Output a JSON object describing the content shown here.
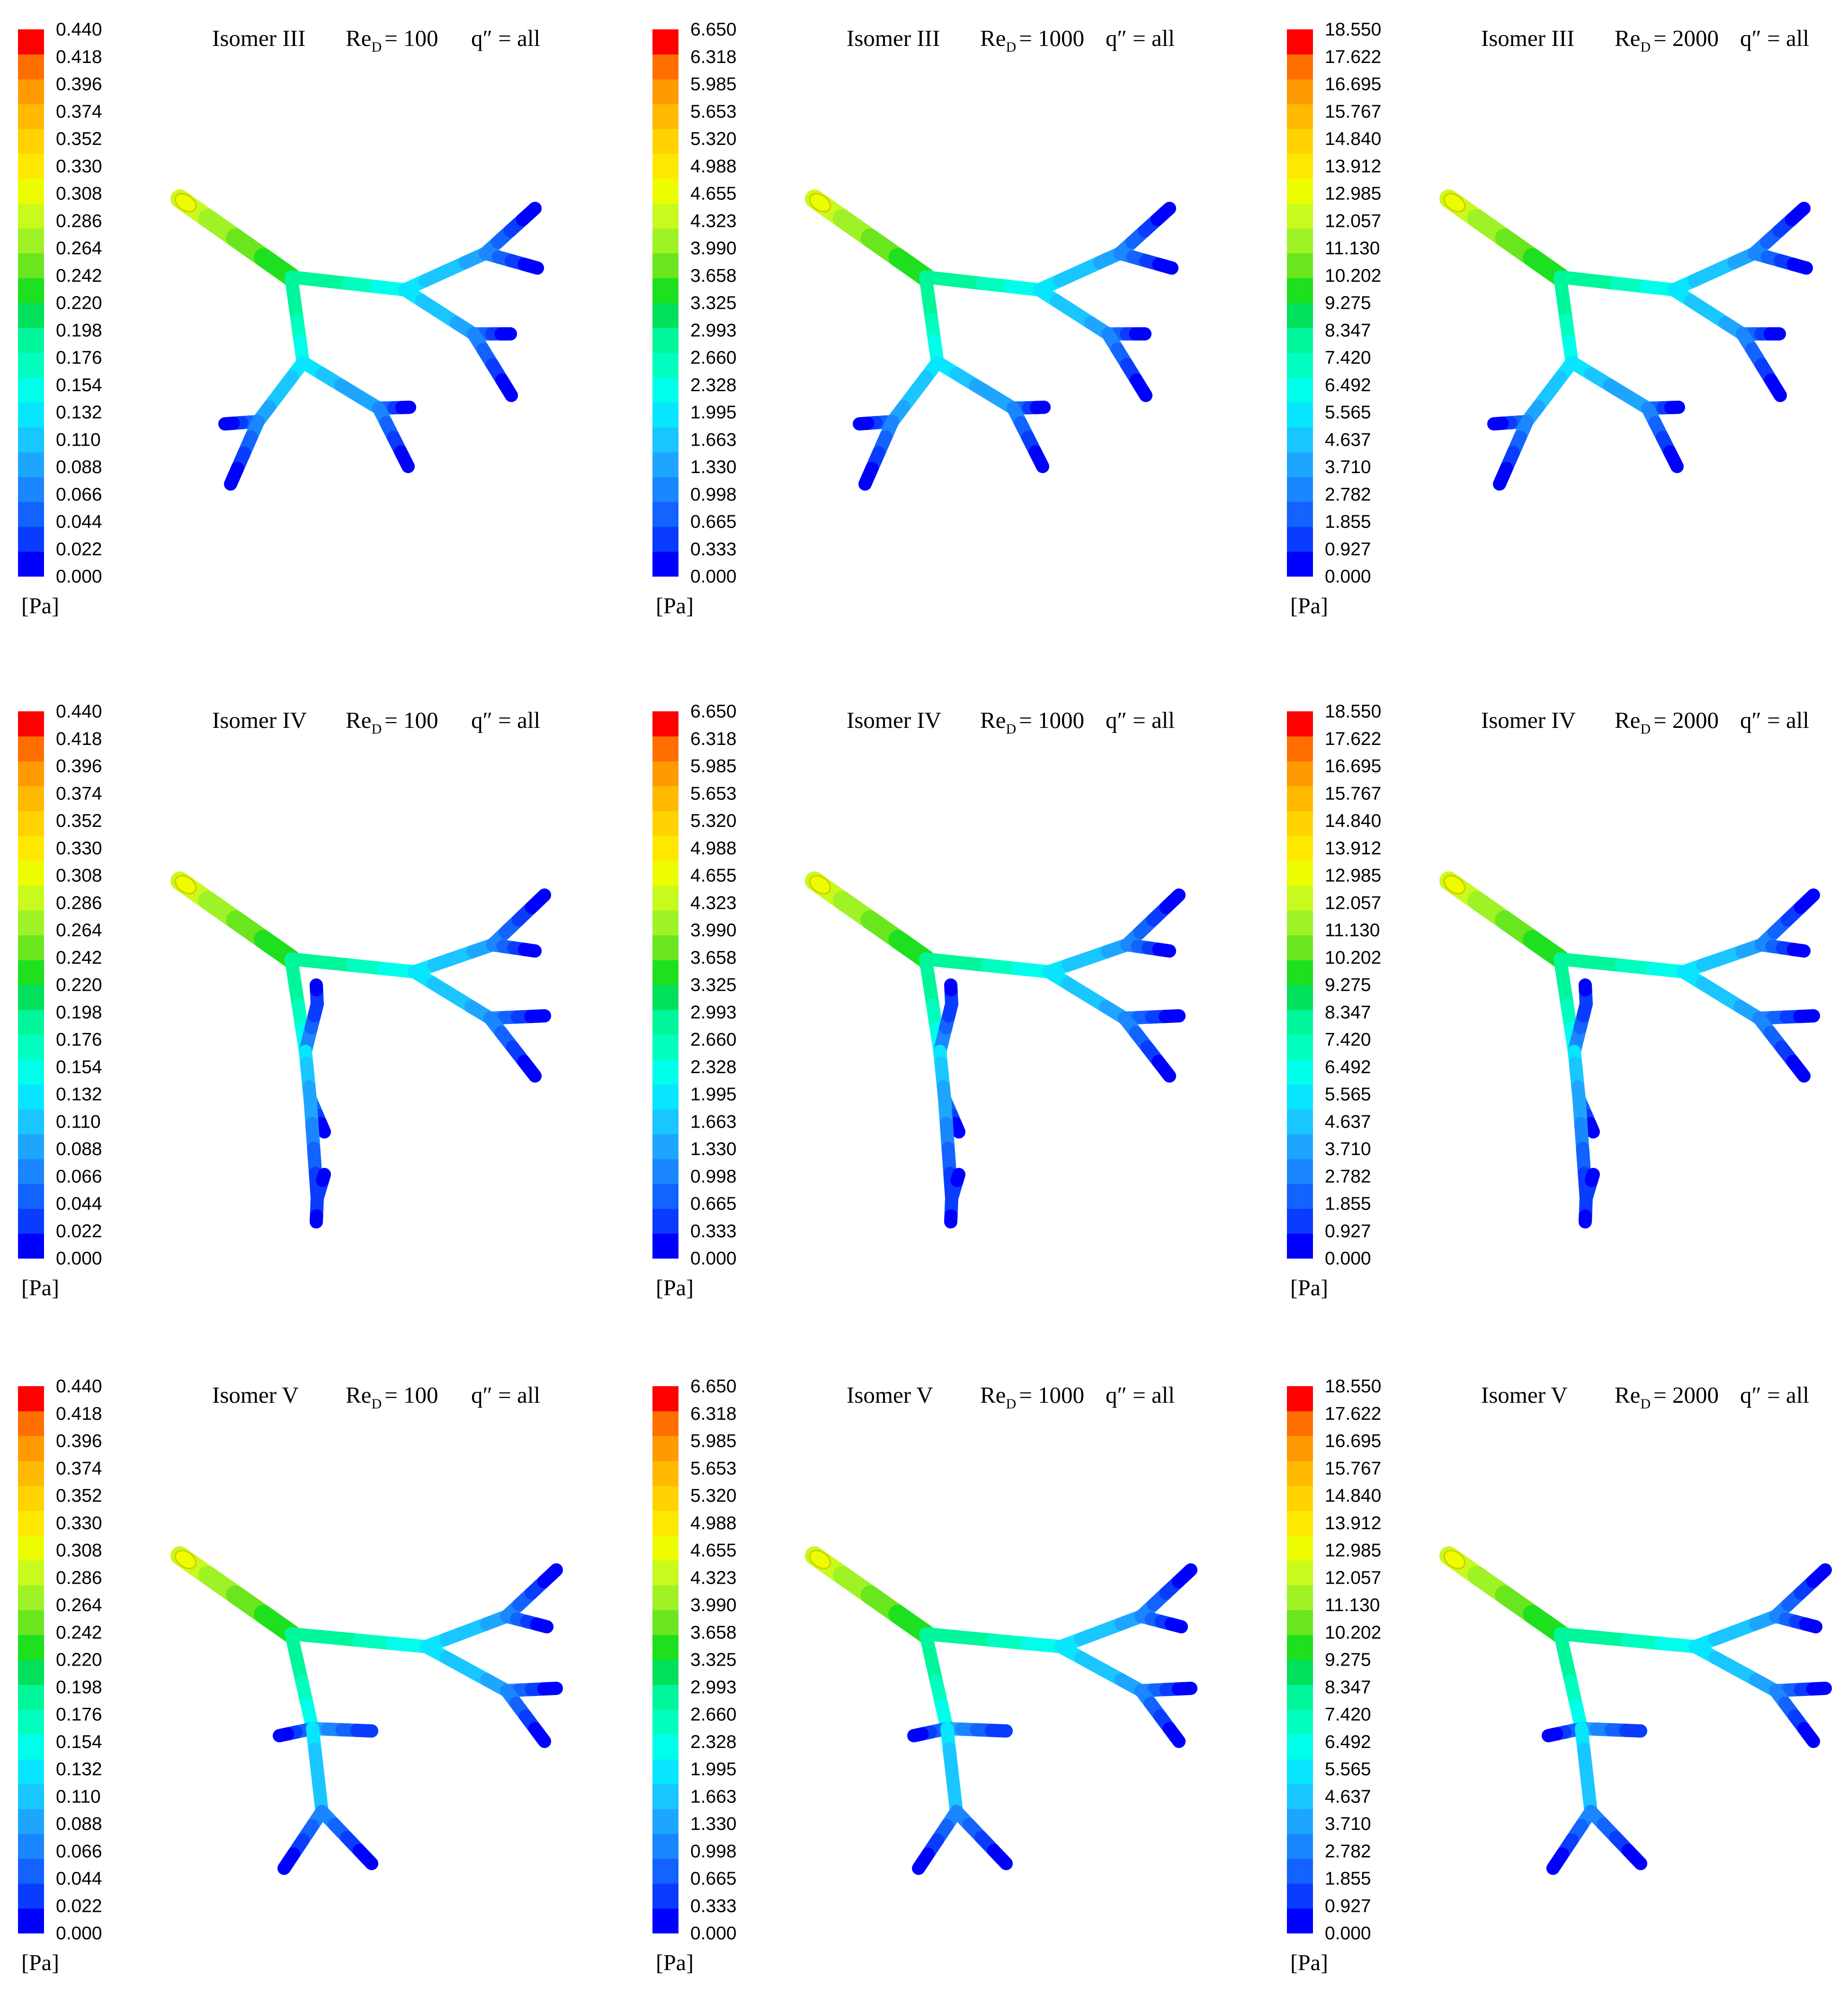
{
  "unit": "[Pa]",
  "title_parts": {
    "re_prefix": "Re",
    "re_subscript": "D",
    "heat_flux": "q″ = all"
  },
  "colormap": [
    "#0000ff",
    "#0a3cff",
    "#1263ff",
    "#1a86ff",
    "#1ea6ff",
    "#19c6ff",
    "#08e6ff",
    "#00ffea",
    "#00ffbe",
    "#00f69a",
    "#00e05a",
    "#1ee01e",
    "#6ae61e",
    "#9ff226",
    "#c8fa1e",
    "#eefc00",
    "#ffe800",
    "#ffd200",
    "#ffb900",
    "#ff9a00",
    "#ff6f00",
    "#ff0000"
  ],
  "scales": {
    "re100": {
      "max": 0.44,
      "ticks": [
        "0.440",
        "0.418",
        "0.396",
        "0.374",
        "0.352",
        "0.330",
        "0.308",
        "0.286",
        "0.264",
        "0.242",
        "0.220",
        "0.198",
        "0.176",
        "0.154",
        "0.132",
        "0.110",
        "0.088",
        "0.066",
        "0.044",
        "0.022",
        "0.000"
      ]
    },
    "re1000": {
      "max": 6.65,
      "ticks": [
        "6.650",
        "6.318",
        "5.985",
        "5.653",
        "5.320",
        "4.988",
        "4.655",
        "4.323",
        "3.990",
        "3.658",
        "3.325",
        "2.993",
        "2.660",
        "2.328",
        "1.995",
        "1.663",
        "1.330",
        "0.998",
        "0.665",
        "0.333",
        "0.000"
      ]
    },
    "re2000": {
      "max": 18.55,
      "ticks": [
        "18.550",
        "17.622",
        "16.695",
        "15.767",
        "14.840",
        "13.912",
        "12.985",
        "12.057",
        "11.130",
        "10.202",
        "9.275",
        "8.347",
        "7.420",
        "6.492",
        "5.565",
        "4.637",
        "3.710",
        "2.782",
        "1.855",
        "0.927",
        "0.000"
      ]
    }
  },
  "panels": [
    {
      "isomer": "Isomer III",
      "re_value": "= 100",
      "scale": "re100",
      "tree": "III"
    },
    {
      "isomer": "Isomer III",
      "re_value": "= 1000",
      "scale": "re1000",
      "tree": "III"
    },
    {
      "isomer": "Isomer III",
      "re_value": "= 2000",
      "scale": "re2000",
      "tree": "III"
    },
    {
      "isomer": "Isomer IV",
      "re_value": "= 100",
      "scale": "re100",
      "tree": "IV"
    },
    {
      "isomer": "Isomer IV",
      "re_value": "= 1000",
      "scale": "re1000",
      "tree": "IV"
    },
    {
      "isomer": "Isomer IV",
      "re_value": "= 2000",
      "scale": "re2000",
      "tree": "IV"
    },
    {
      "isomer": "Isomer V",
      "re_value": "= 100",
      "scale": "re100",
      "tree": "V"
    },
    {
      "isomer": "Isomer V",
      "re_value": "= 1000",
      "scale": "re1000",
      "tree": "V"
    },
    {
      "isomer": "Isomer V",
      "re_value": "= 2000",
      "scale": "re2000",
      "tree": "V"
    }
  ]
}
